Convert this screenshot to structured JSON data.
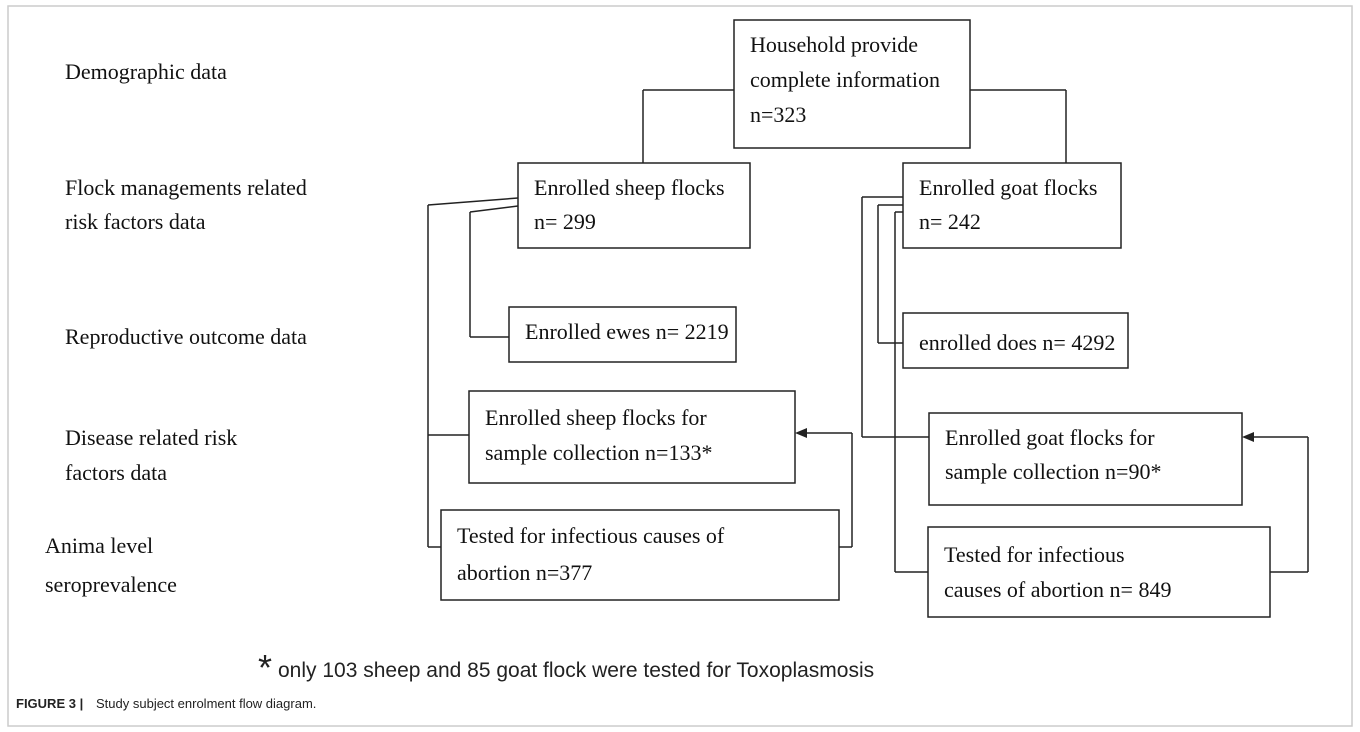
{
  "labels": [
    {
      "lines": [
        "Demographic  data"
      ]
    },
    {
      "lines": [
        "Flock managements  related",
        "risk factors data"
      ]
    },
    {
      "lines": [
        "Reproductive  outcome data"
      ]
    },
    {
      "lines": [
        "Disease related risk",
        "factors  data"
      ]
    },
    {
      "lines": [
        "Anima  level",
        "seroprevalence"
      ]
    }
  ],
  "boxes": [
    {
      "lines": [
        "Household  provide",
        "complete  information",
        "n=323"
      ]
    },
    {
      "lines": [
        "Enrolled  sheep flocks",
        "n= 299"
      ]
    },
    {
      "lines": [
        "Enrolled  goat flocks",
        "n= 242"
      ]
    },
    {
      "lines": [
        "Enrolled  ewes n= 2219"
      ]
    },
    {
      "lines": [
        "enrolled  does n= 4292"
      ]
    },
    {
      "lines": [
        "Enrolled sheep flocks  for",
        "sample  collection  n=133*"
      ]
    },
    {
      "lines": [
        "Enrolled goat flocks for",
        "sample collection   n=90*"
      ]
    },
    {
      "lines": [
        "Tested for infectious  causes of",
        "abortion n=377"
      ]
    },
    {
      "lines": [
        "Tested for infectious",
        "causes of abortion n= 849"
      ]
    }
  ],
  "footnote": {
    "marker": "*",
    "text": "only 103 sheep and 85 goat flock were tested for Toxoplasmosis"
  },
  "caption": {
    "label": "FIGURE 3 |",
    "text": "Study subject enrolment flow diagram."
  }
}
